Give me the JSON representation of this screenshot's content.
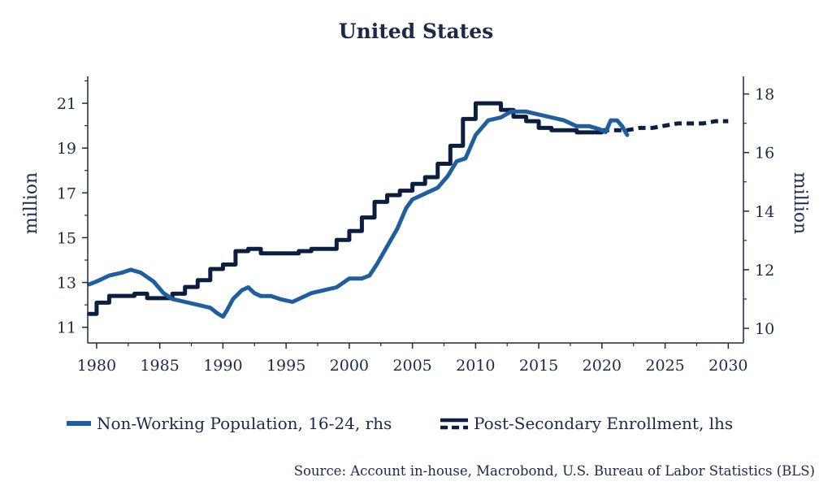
{
  "chart_data": {
    "type": "line",
    "title": "United States",
    "source": "Source: Account in-house, Macrobond, U.S. Bureau of Labor Statistics (BLS)",
    "x_ticks": [
      "1980",
      "1985",
      "1990",
      "1995",
      "2000",
      "2005",
      "2010",
      "2015",
      "2020",
      "2025",
      "2030"
    ],
    "xlim": [
      1979.3,
      2031.2
    ],
    "left_axis": {
      "label": "million",
      "ticks": [
        "11",
        "13",
        "15",
        "17",
        "19",
        "21"
      ],
      "ylim": [
        10.3,
        22.2
      ]
    },
    "right_axis": {
      "label": "million",
      "ticks": [
        "10",
        "12",
        "14",
        "16",
        "18"
      ],
      "ylim": [
        9.5,
        18.6
      ]
    },
    "colors": {
      "enrollment": "#0b1e3f",
      "nonworking": "#1f5fa0",
      "axis": "#1b2a4a"
    },
    "legend": [
      "Non-Working Population, 16-24, rhs",
      "Post-Secondary Enrollment, lhs"
    ],
    "series": [
      {
        "name": "Post-Secondary Enrollment, lhs",
        "axis": "left",
        "style": "step",
        "x": [
          1979.4,
          1980.0,
          1981.0,
          1982.0,
          1983.0,
          1984.0,
          1985.0,
          1986.0,
          1987.0,
          1988.0,
          1989.0,
          1990.0,
          1991.0,
          1992.0,
          1993.0,
          1994.0,
          1995.0,
          1996.0,
          1997.0,
          1998.0,
          1999.0,
          2000.0,
          2001.0,
          2002.0,
          2003.0,
          2004.0,
          2005.0,
          2006.0,
          2007.0,
          2008.0,
          2009.0,
          2010.0,
          2011.0,
          2012.0,
          2013.0,
          2014.0,
          2015.0,
          2016.0,
          2017.0,
          2018.0,
          2019.0,
          2020.0
        ],
        "y": [
          11.6,
          12.1,
          12.4,
          12.4,
          12.5,
          12.3,
          12.3,
          12.5,
          12.8,
          13.1,
          13.6,
          13.8,
          14.4,
          14.5,
          14.3,
          14.3,
          14.3,
          14.4,
          14.5,
          14.5,
          14.9,
          15.3,
          15.9,
          16.6,
          16.9,
          17.1,
          17.4,
          17.7,
          18.3,
          19.1,
          20.3,
          21.0,
          21.0,
          20.7,
          20.4,
          20.2,
          19.9,
          19.8,
          19.8,
          19.7,
          19.7,
          19.7
        ]
      },
      {
        "name": "Post-Secondary Enrollment, lhs",
        "axis": "left",
        "style": "dashed",
        "x": [
          2020.0,
          2021.0,
          2022.0,
          2023.0,
          2024.0,
          2025.0,
          2026.0,
          2027.0,
          2028.0,
          2029.0,
          2030.0
        ],
        "y": [
          19.8,
          19.8,
          19.8,
          19.9,
          19.9,
          20.0,
          20.1,
          20.1,
          20.1,
          20.2,
          20.2
        ]
      },
      {
        "name": "Non-Working Population, 16-24, rhs",
        "axis": "right",
        "style": "solid",
        "x": [
          1979.4,
          1980.0,
          1981.0,
          1982.0,
          1982.7,
          1983.5,
          1984.5,
          1985.3,
          1986.0,
          1987.0,
          1988.0,
          1989.0,
          1989.6,
          1990.0,
          1990.3,
          1990.8,
          1991.5,
          1992.0,
          1992.5,
          1993.0,
          1993.8,
          1994.5,
          1995.5,
          1996.0,
          1997.0,
          1998.0,
          1999.0,
          2000.0,
          2001.0,
          2001.6,
          2002.2,
          2003.0,
          2003.8,
          2004.5,
          2005.0,
          2006.0,
          2007.0,
          2007.8,
          2008.5,
          2009.2,
          2010.0,
          2011.0,
          2012.0,
          2012.8,
          2013.5,
          2014.0,
          2015.0,
          2016.0,
          2017.0,
          2018.0,
          2019.0,
          2019.8,
          2020.3,
          2020.7,
          2021.2,
          2021.6,
          2022.0
        ],
        "y": [
          11.5,
          11.6,
          11.8,
          11.9,
          12.0,
          11.9,
          11.6,
          11.2,
          11.0,
          10.9,
          10.8,
          10.7,
          10.5,
          10.4,
          10.6,
          11.0,
          11.3,
          11.4,
          11.2,
          11.1,
          11.1,
          11.0,
          10.9,
          11.0,
          11.2,
          11.3,
          11.4,
          11.7,
          11.7,
          11.8,
          12.2,
          12.8,
          13.4,
          14.1,
          14.4,
          14.6,
          14.8,
          15.2,
          15.7,
          15.8,
          16.6,
          17.1,
          17.2,
          17.4,
          17.4,
          17.4,
          17.3,
          17.2,
          17.1,
          16.9,
          16.9,
          16.8,
          16.7,
          17.1,
          17.1,
          16.9,
          16.6
        ]
      }
    ]
  }
}
